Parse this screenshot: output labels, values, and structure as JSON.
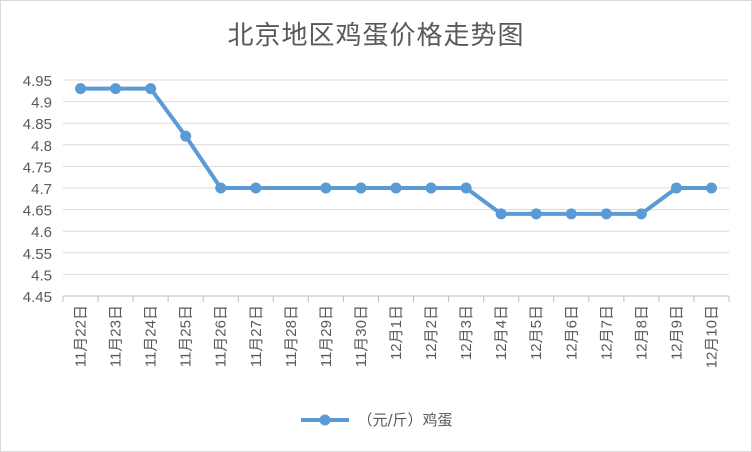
{
  "chart_data": {
    "type": "line",
    "title": "北京地区鸡蛋价格走势图",
    "categories": [
      "11月22日",
      "11月23日",
      "11月24日",
      "11月25日",
      "11月26日",
      "11月27日",
      "11月28日",
      "11月29日",
      "11月30日",
      "12月1日",
      "12月2日",
      "12月3日",
      "12月4日",
      "12月5日",
      "12月6日",
      "12月7日",
      "12月8日",
      "12月9日",
      "12月10日"
    ],
    "series": [
      {
        "name": "（元/斤）鸡蛋",
        "color": "#5b9bd5",
        "values": [
          4.93,
          4.93,
          4.93,
          4.82,
          4.7,
          4.7,
          null,
          4.7,
          4.7,
          4.7,
          4.7,
          4.7,
          4.64,
          4.64,
          4.64,
          4.64,
          4.64,
          4.7,
          4.7
        ]
      }
    ],
    "ylim": [
      4.45,
      4.95
    ],
    "yticks": [
      "4.95",
      "4.9",
      "4.85",
      "4.8",
      "4.75",
      "4.7",
      "4.65",
      "4.6",
      "4.55",
      "4.5",
      "4.45"
    ],
    "grid": true,
    "legend_position": "bottom"
  }
}
